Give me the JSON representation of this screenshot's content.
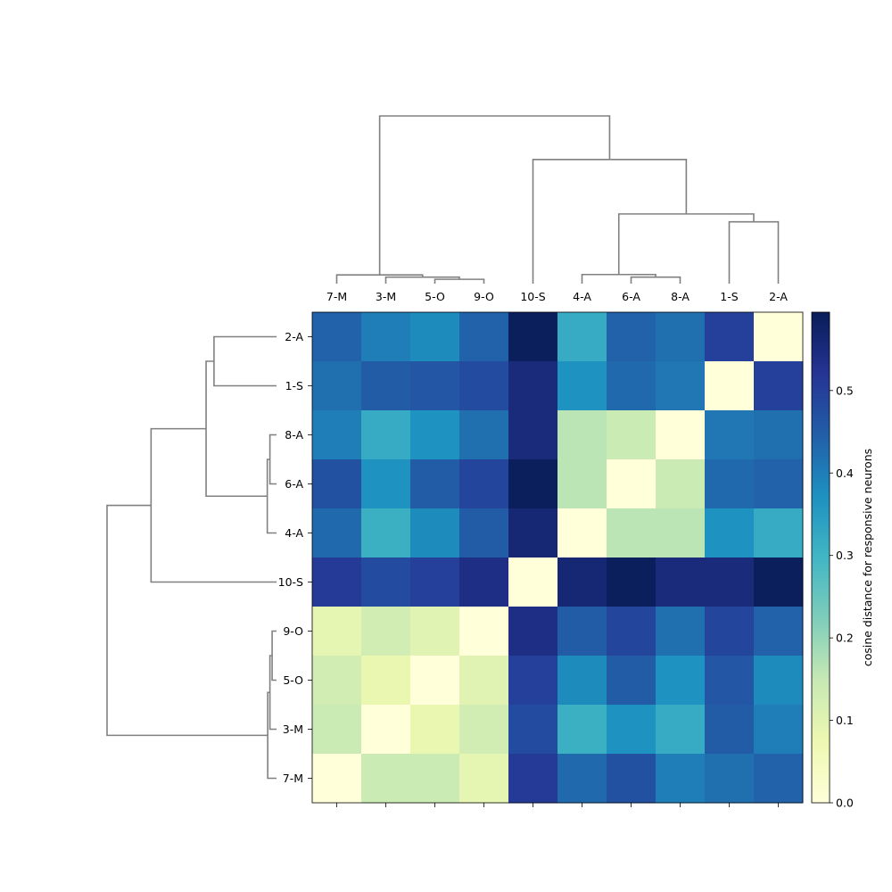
{
  "chart_data": {
    "type": "heatmap",
    "title": "",
    "colorbar": {
      "label": "cosine distance for responsive neurons",
      "ticks": [
        0.0,
        0.1,
        0.2,
        0.3,
        0.4,
        0.5
      ],
      "tick_labels": [
        "0.0",
        "0.1",
        "0.2",
        "0.3",
        "0.4",
        "0.5"
      ],
      "range": [
        0,
        0.595
      ],
      "colormap": "YlGnBu",
      "colormap_stops": [
        "#ffffd9",
        "#edf8b1",
        "#c7e9b4",
        "#7fcdbb",
        "#41b6c4",
        "#1d91c0",
        "#225ea8",
        "#253494",
        "#081d58"
      ]
    },
    "columns": [
      "7-M",
      "3-M",
      "5-O",
      "9-O",
      "10-S",
      "4-A",
      "6-A",
      "8-A",
      "1-S",
      "2-A"
    ],
    "rows": [
      "2-A",
      "1-S",
      "8-A",
      "6-A",
      "4-A",
      "10-S",
      "9-O",
      "5-O",
      "3-M",
      "7-M"
    ],
    "values": [
      [
        0.44,
        0.4,
        0.38,
        0.44,
        0.59,
        0.32,
        0.44,
        0.42,
        0.5,
        0.0
      ],
      [
        0.42,
        0.45,
        0.46,
        0.48,
        0.55,
        0.37,
        0.43,
        0.41,
        0.0,
        0.5
      ],
      [
        0.4,
        0.32,
        0.37,
        0.42,
        0.55,
        0.16,
        0.14,
        0.0,
        0.41,
        0.42
      ],
      [
        0.47,
        0.37,
        0.45,
        0.49,
        0.59,
        0.16,
        0.0,
        0.14,
        0.43,
        0.44
      ],
      [
        0.43,
        0.31,
        0.38,
        0.45,
        0.56,
        0.0,
        0.16,
        0.16,
        0.37,
        0.32
      ],
      [
        0.51,
        0.48,
        0.5,
        0.54,
        0.0,
        0.56,
        0.59,
        0.55,
        0.55,
        0.59
      ],
      [
        0.09,
        0.13,
        0.1,
        0.0,
        0.54,
        0.45,
        0.49,
        0.42,
        0.49,
        0.44
      ],
      [
        0.13,
        0.08,
        0.0,
        0.1,
        0.5,
        0.38,
        0.45,
        0.37,
        0.46,
        0.38
      ],
      [
        0.14,
        0.0,
        0.08,
        0.13,
        0.48,
        0.31,
        0.37,
        0.32,
        0.45,
        0.4
      ],
      [
        0.0,
        0.14,
        0.14,
        0.09,
        0.51,
        0.43,
        0.47,
        0.4,
        0.42,
        0.44
      ]
    ],
    "col_dendrogram": [
      {
        "left": 2,
        "right": 3,
        "height": 0.1
      },
      {
        "left": 1,
        "right": 10,
        "height": 0.15
      },
      {
        "left": 0,
        "right": 11,
        "height": 0.2
      },
      {
        "left": 6,
        "right": 7,
        "height": 0.15
      },
      {
        "left": 5,
        "right": 13,
        "height": 0.21
      },
      {
        "left": 8,
        "right": 9,
        "height": 1.42
      },
      {
        "left": 14,
        "right": 15,
        "height": 1.6
      },
      {
        "left": 4,
        "right": 16,
        "height": 2.85
      },
      {
        "left": 12,
        "right": 17,
        "height": 3.85
      }
    ],
    "row_dendrogram": [
      {
        "left": 7,
        "right": 6,
        "height": 0.1
      },
      {
        "left": 8,
        "right": 10,
        "height": 0.15
      },
      {
        "left": 9,
        "right": 11,
        "height": 0.2
      },
      {
        "left": 3,
        "right": 2,
        "height": 0.15
      },
      {
        "left": 4,
        "right": 13,
        "height": 0.21
      },
      {
        "left": 1,
        "right": 0,
        "height": 1.42
      },
      {
        "left": 14,
        "right": 15,
        "height": 1.6
      },
      {
        "left": 5,
        "right": 16,
        "height": 2.85
      },
      {
        "left": 12,
        "right": 17,
        "height": 3.85
      }
    ],
    "dendrogram_max_height": 3.85,
    "dendrogram_color": "#808080"
  }
}
